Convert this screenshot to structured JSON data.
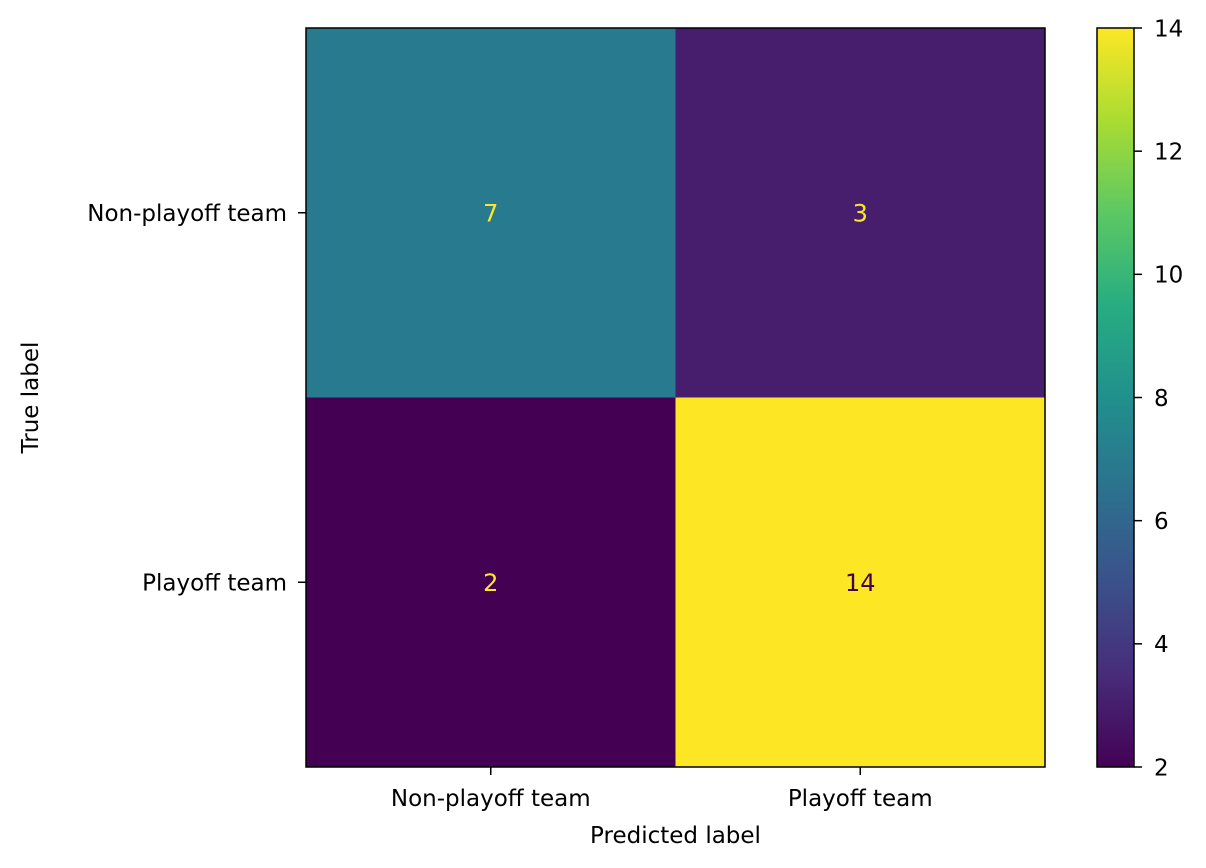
{
  "chart_data": {
    "type": "heatmap",
    "title": "",
    "xlabel": "Predicted label",
    "ylabel": "True label",
    "x_categories": [
      "Non-playoff team",
      "Playoff team"
    ],
    "y_categories": [
      "Non-playoff team",
      "Playoff team"
    ],
    "matrix": [
      [
        7,
        3
      ],
      [
        2,
        14
      ]
    ],
    "colormap": "viridis",
    "colorbar": {
      "min": 2,
      "max": 14,
      "ticks": [
        2,
        4,
        6,
        8,
        10,
        12,
        14
      ]
    },
    "colors": {
      "light_text": "#fde725",
      "dark_text": "#440154"
    },
    "grid": false
  }
}
